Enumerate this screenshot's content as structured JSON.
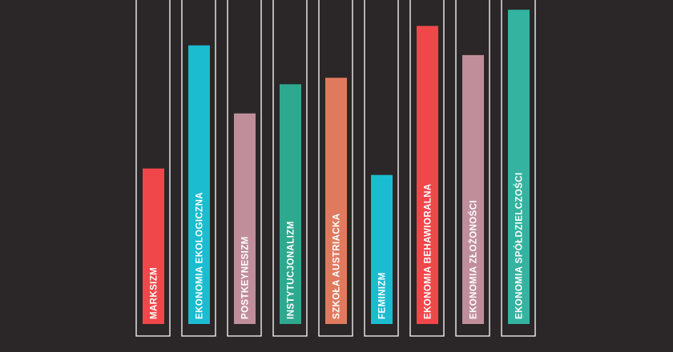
{
  "chart_data": {
    "type": "bar",
    "orientation": "vertical",
    "categories": [
      "MARKSIZM",
      "EKONOMIA EKOLOGICZNA",
      "POSTKEYNESIZM",
      "INSTYTUCJONALIZM",
      "SZKOŁA AUSTRIACKA",
      "FEMINIZM",
      "EKONOMIA BEHAWIORALNA",
      "EKONOMIA ZŁOŻONOŚCI",
      "EKONOMIA SPÓŁDZIELCZOŚCI"
    ],
    "values": [
      48,
      86,
      65,
      74,
      76,
      46,
      92,
      83,
      97
    ],
    "colors": [
      "#f0474b",
      "#1bbcd0",
      "#c08e9b",
      "#2fa890",
      "#e07a5e",
      "#1bbcd0",
      "#f0474b",
      "#c08e9b",
      "#33b3a0"
    ],
    "ylim": [
      0,
      100
    ],
    "grid": false,
    "legend": "none",
    "title": "",
    "xlabel": "",
    "ylabel": "",
    "background": "#2b2627",
    "frame_color": "#ffffff"
  }
}
